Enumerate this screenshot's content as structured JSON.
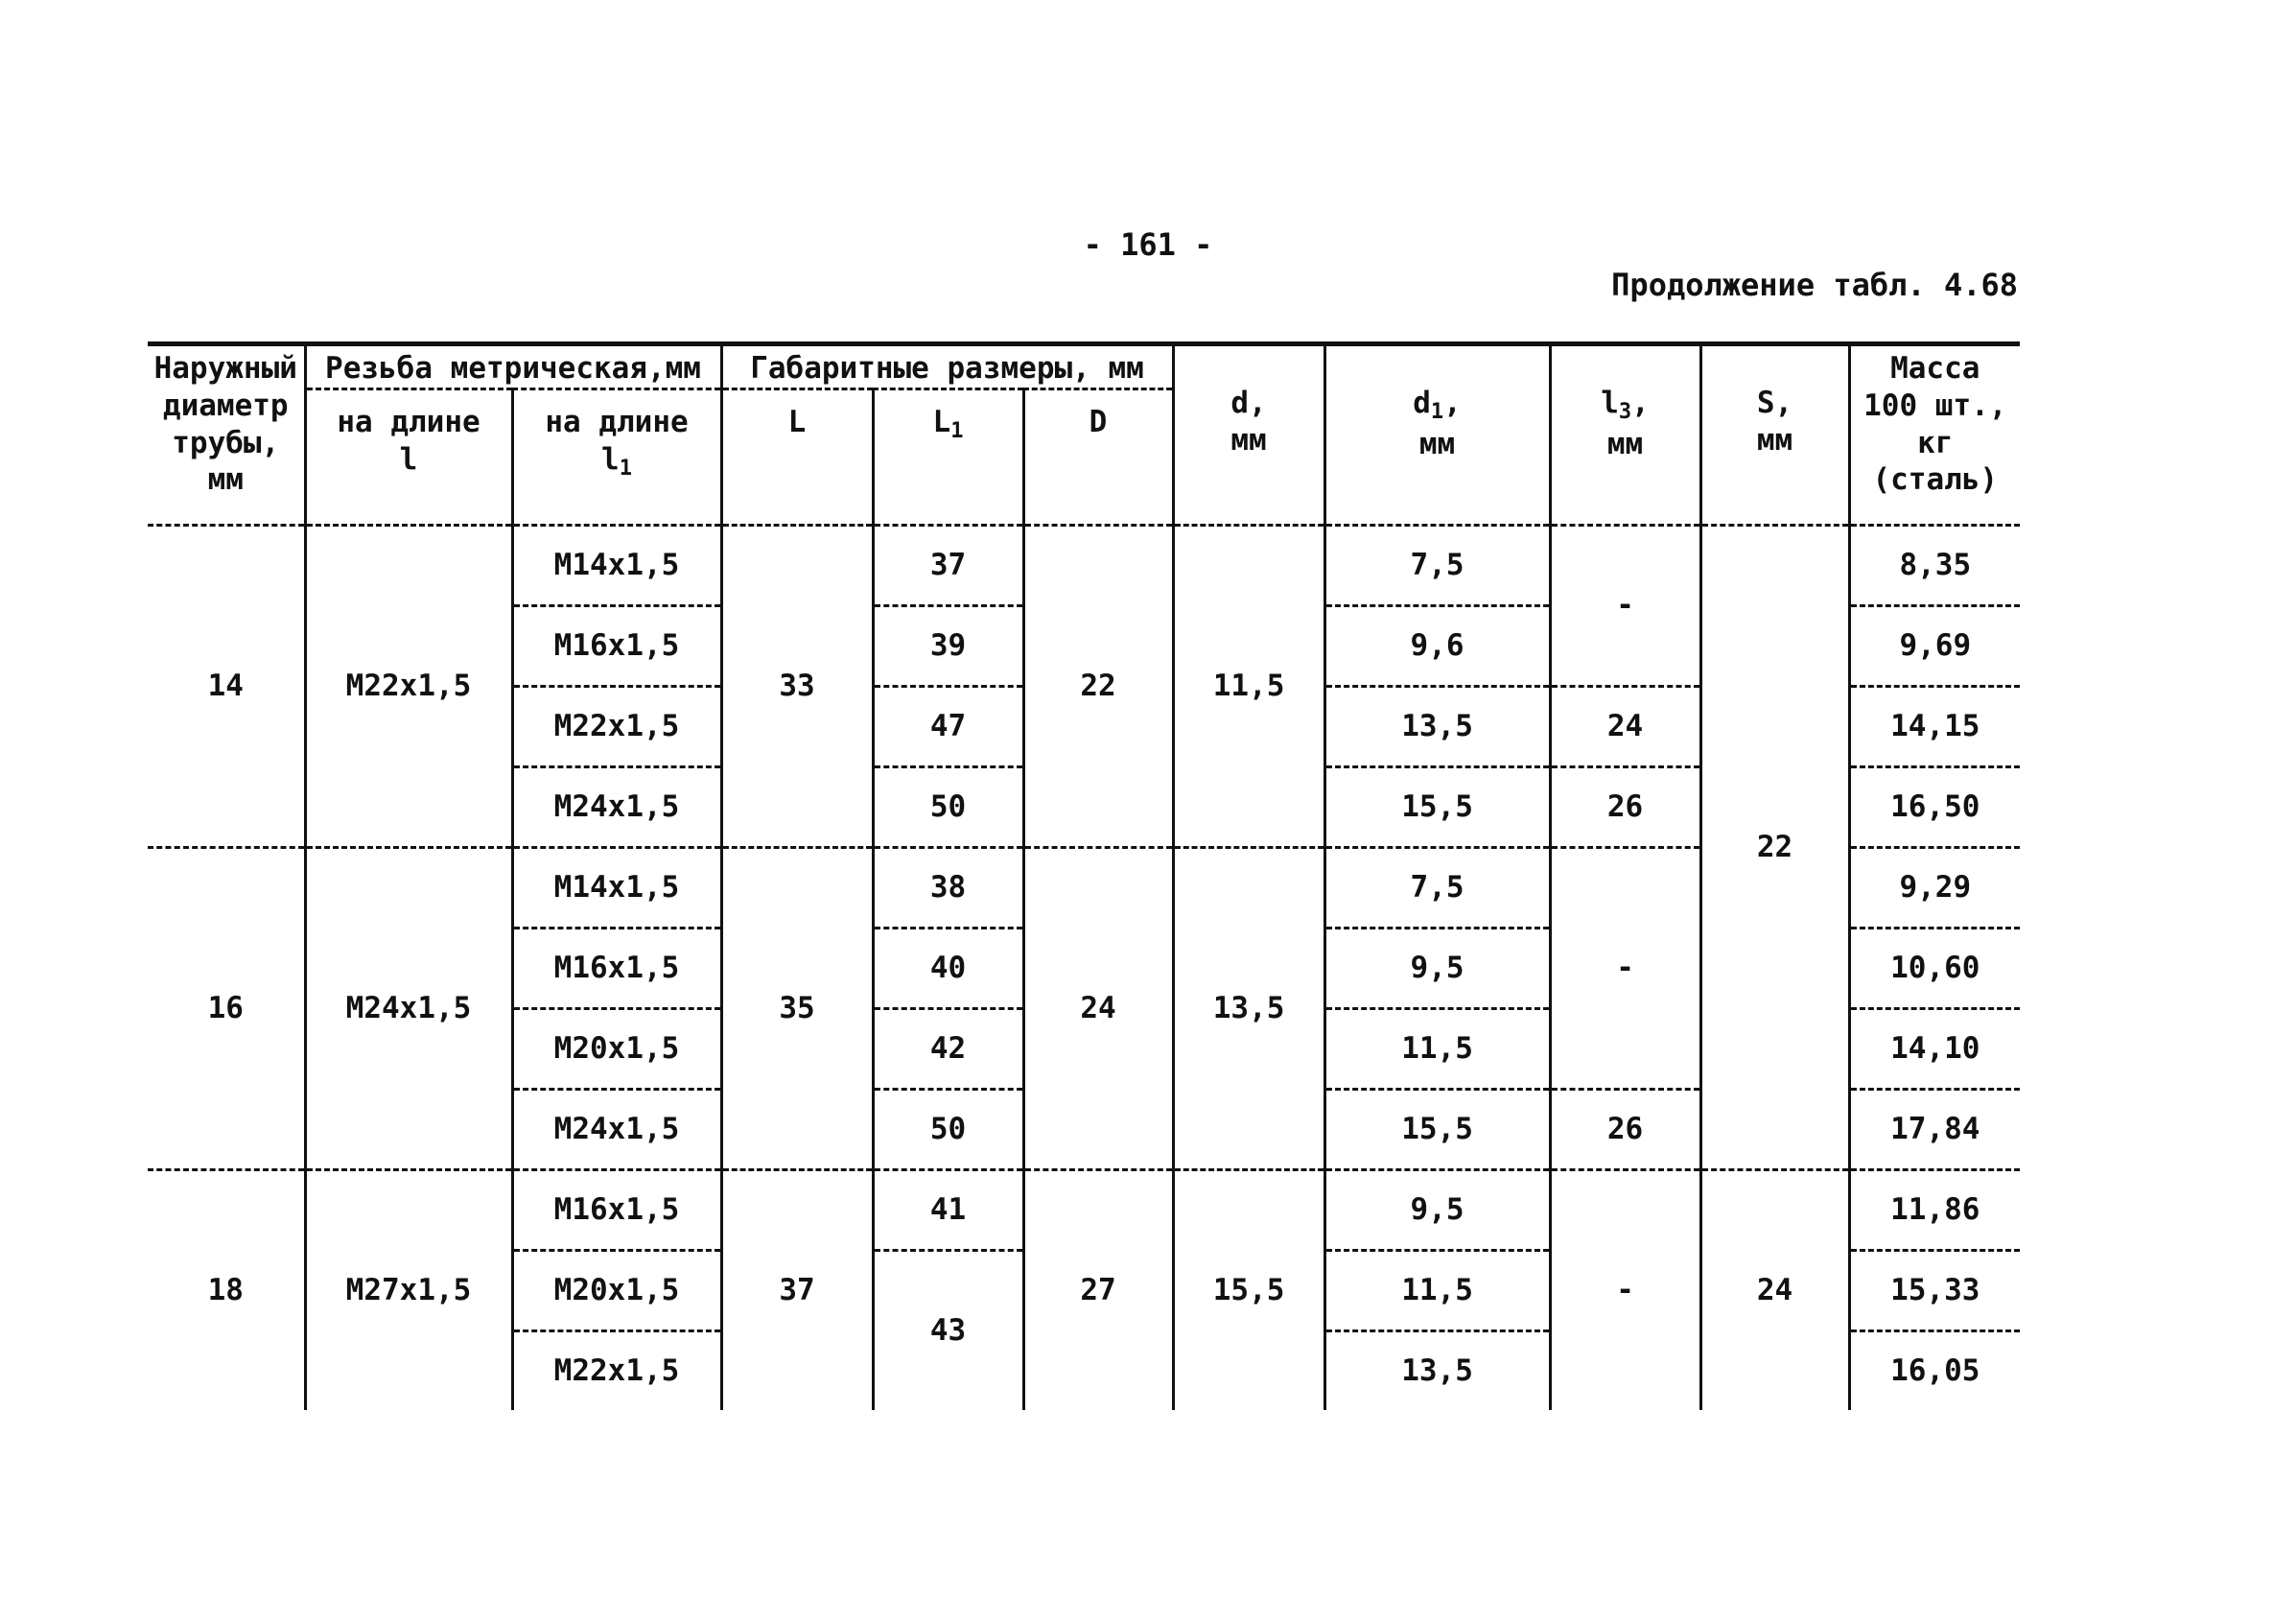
{
  "page_number": "- 161 -",
  "caption": "Продолжение табл. 4.68",
  "header": {
    "outer_diameter": [
      "Наружный",
      "диаметр",
      "трубы,",
      "мм"
    ],
    "thread": "Резьба метрическая,мм",
    "thread_l": [
      "на длине",
      "l"
    ],
    "thread_l1": [
      "на длине",
      "l",
      "1"
    ],
    "dims": "Габаритные размеры, мм",
    "L": "L",
    "L1": [
      "L",
      "1"
    ],
    "D": "D",
    "d": [
      "d,",
      "мм"
    ],
    "d1": [
      "d",
      "1",
      ",",
      "мм"
    ],
    "l3": [
      "l",
      "3",
      ",",
      "мм"
    ],
    "S": [
      "S,",
      "мм"
    ],
    "mass": [
      "Масса",
      "100 шт.,",
      "кг",
      "(сталь)"
    ]
  },
  "groups": [
    {
      "outer": "14",
      "thread_l": "M22x1,5",
      "L": "33",
      "D": "22",
      "d": "11,5",
      "rows": [
        {
          "thread_l1": "M14x1,5",
          "L1": "37",
          "d1": "7,5",
          "mass": "8,35"
        },
        {
          "thread_l1": "M16x1,5",
          "L1": "39",
          "d1": "9,6",
          "mass": "9,69"
        },
        {
          "thread_l1": "M22x1,5",
          "L1": "47",
          "d1": "13,5",
          "mass": "14,15"
        },
        {
          "thread_l1": "M24x1,5",
          "L1": "50",
          "d1": "15,5",
          "mass": "16,50"
        }
      ],
      "l3": [
        "-",
        "24",
        "26"
      ]
    },
    {
      "outer": "16",
      "thread_l": "M24x1,5",
      "L": "35",
      "D": "24",
      "d": "13,5",
      "rows": [
        {
          "thread_l1": "M14x1,5",
          "L1": "38",
          "d1": "7,5",
          "mass": "9,29"
        },
        {
          "thread_l1": "M16x1,5",
          "L1": "40",
          "d1": "9,5",
          "mass": "10,60"
        },
        {
          "thread_l1": "M20x1,5",
          "L1": "42",
          "d1": "11,5",
          "mass": "14,10"
        },
        {
          "thread_l1": "M24x1,5",
          "L1": "50",
          "d1": "15,5",
          "mass": "17,84"
        }
      ],
      "l3": [
        "-",
        "26"
      ]
    },
    {
      "outer": "18",
      "thread_l": "M27x1,5",
      "L": "37",
      "D": "27",
      "d": "15,5",
      "rows": [
        {
          "thread_l1": "M16x1,5",
          "L1": "41",
          "d1": "9,5",
          "mass": "11,86"
        },
        {
          "thread_l1": "M20x1,5",
          "L1": "43",
          "d1": "11,5",
          "mass": "15,33"
        },
        {
          "thread_l1": "M22x1,5",
          "d1": "13,5",
          "mass": "16,05"
        }
      ],
      "l3": [
        "-"
      ]
    }
  ],
  "S_values": [
    "22",
    "24"
  ]
}
